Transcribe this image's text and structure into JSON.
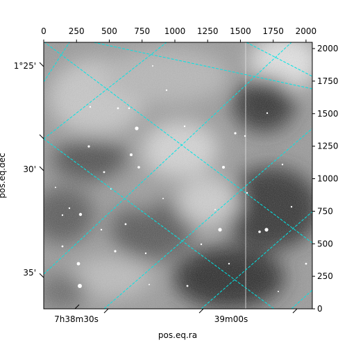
{
  "chart_data": {
    "type": "heatmap",
    "description_kind": "astronomical image with WCS coordinate overlay",
    "colormap": "gray",
    "pixel_axes": {
      "x": {
        "range": [
          0,
          2048
        ],
        "ticks": [
          0,
          250,
          500,
          750,
          1000,
          1250,
          1500,
          1750,
          2000
        ],
        "position": "top"
      },
      "y": {
        "range": [
          0,
          2048
        ],
        "ticks": [
          0,
          250,
          500,
          750,
          1000,
          1250,
          1500,
          1750,
          2000
        ],
        "position": "right"
      }
    },
    "world_axes": {
      "xlabel": "pos.eq.ra",
      "ylabel": "pos.eq.dec",
      "ra_ticks": [
        {
          "label": "7h38m30s"
        },
        {
          "label": "39m00s"
        }
      ],
      "dec_ticks": [
        {
          "label": "1°25'"
        },
        {
          "label": "30'"
        },
        {
          "label": "35'"
        }
      ]
    },
    "grid": {
      "on": true,
      "color": "#00e5e5",
      "style": "dashed"
    }
  }
}
